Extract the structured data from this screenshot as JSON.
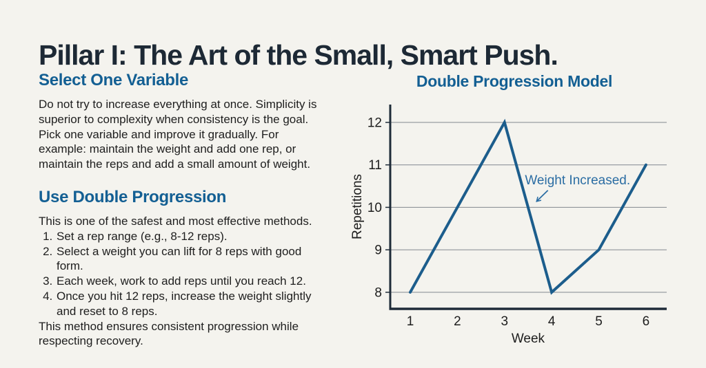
{
  "page": {
    "title": "Pillar I: The Art of the Small, Smart Push."
  },
  "sections": [
    {
      "heading": "Select One Variable",
      "body": "Do not try to increase everything at once. Simplicity is superior to complexity when consistency is the goal. Pick one variable and improve it gradually. For example: maintain the weight and add one rep, or maintain the reps and add a small amount of weight."
    },
    {
      "heading": "Use Double Progression",
      "intro": "This is one of the safest and most effective methods.",
      "list": [
        "Set a rep range (e.g., 8-12 reps).",
        "Select a weight you can lift for 8 reps with good form.",
        "Each week, work to add reps until you reach 12.",
        "Once you hit 12 reps, increase the weight slightly and reset to 8 reps."
      ],
      "outro": "This method ensures consistent progression while respecting recovery."
    }
  ],
  "chart_data": {
    "type": "line",
    "title": "Double Progression Model",
    "xlabel": "Week",
    "ylabel": "Repetitions",
    "x": [
      1,
      2,
      3,
      4,
      5,
      6
    ],
    "values": [
      8,
      10,
      12,
      8,
      9,
      11
    ],
    "xticks": [
      1,
      2,
      3,
      4,
      5,
      6
    ],
    "yticks": [
      8,
      9,
      10,
      11,
      12
    ],
    "xlim": [
      0.576,
      6.44
    ],
    "ylim": [
      7.61,
      12.42
    ],
    "grid": true,
    "legend": "none",
    "annotation": {
      "text": "Weight Increased.",
      "text_xy": [
        4.55,
        10.54
      ],
      "arrow_from": [
        3.92,
        10.4
      ],
      "arrow_to": [
        3.68,
        10.14
      ]
    },
    "colors": {
      "line": "#1c5d8c",
      "grid": "#8e9399",
      "axis": "#1e2b38",
      "annotation": "#2b6da3"
    }
  },
  "colors": {
    "background": "#f4f3ee",
    "title": "#1d2935",
    "heading": "#135f93",
    "body_text": "#1e1e1e"
  }
}
